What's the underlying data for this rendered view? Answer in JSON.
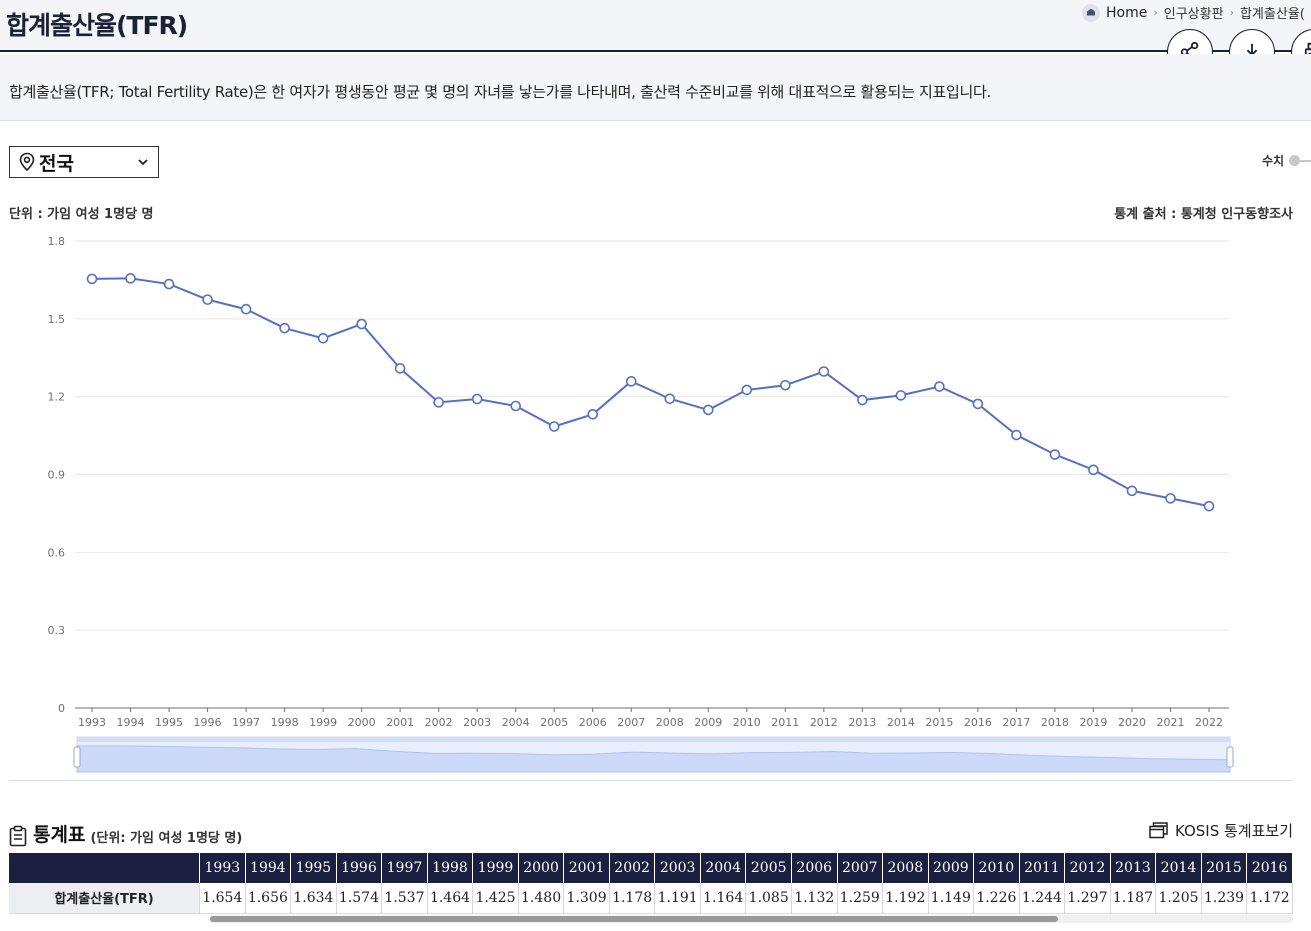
{
  "header": {
    "title": "합계출산율(TFR)",
    "breadcrumb": [
      "Home",
      "인구상황판",
      "합계출산율("
    ],
    "actions": [
      {
        "name": "share",
        "icon": "share-icon"
      },
      {
        "name": "download",
        "icon": "download-icon"
      },
      {
        "name": "print",
        "icon": "print-icon"
      }
    ]
  },
  "intro": {
    "text": "합계출산율(TFR; Total Fertility Rate)은 한 여자가 평생동안 평균 몇 명의 자녀를 낳는가를 나타내며, 출산력 수준비교를 위해 대표적으로 활용되는 지표입니다."
  },
  "controls": {
    "region": "전국",
    "value_toggle_label": "수치"
  },
  "chart_meta": {
    "unit": "단위 : 가임 여성 1명당 명",
    "source": "통계 출처 : 통계청 인구동향조사"
  },
  "chart_data": {
    "type": "line",
    "x": [
      1993,
      1994,
      1995,
      1996,
      1997,
      1998,
      1999,
      2000,
      2001,
      2002,
      2003,
      2004,
      2005,
      2006,
      2007,
      2008,
      2009,
      2010,
      2011,
      2012,
      2013,
      2014,
      2015,
      2016,
      2017,
      2018,
      2019,
      2020,
      2021,
      2022
    ],
    "series": [
      {
        "values": [
          1.654,
          1.656,
          1.634,
          1.574,
          1.537,
          1.464,
          1.425,
          1.48,
          1.309,
          1.178,
          1.191,
          1.164,
          1.085,
          1.132,
          1.259,
          1.192,
          1.149,
          1.226,
          1.244,
          1.297,
          1.187,
          1.205,
          1.239,
          1.172,
          1.052,
          0.977,
          0.918,
          0.837,
          0.808,
          0.778
        ]
      }
    ],
    "yticks": [
      "0",
      "0.3",
      "0.6",
      "0.9",
      "1.2",
      "1.5",
      "1.8"
    ],
    "ylim": [
      0,
      1.8
    ],
    "grid": true,
    "color": "#5470c6",
    "zoom_slider": true
  },
  "table": {
    "title": "통계표",
    "unit": "(단위: 가임 여성 1명당 명)",
    "kosis_label": "KOSIS 통계표보기",
    "row_label": "합계출산율(TFR)",
    "years": [
      "1993",
      "1994",
      "1995",
      "1996",
      "1997",
      "1998",
      "1999",
      "2000",
      "2001",
      "2002",
      "2003",
      "2004",
      "2005",
      "2006",
      "2007",
      "2008",
      "2009",
      "2010",
      "2011",
      "2012",
      "2013",
      "2014",
      "2015",
      "2016"
    ],
    "values": [
      "1.654",
      "1.656",
      "1.634",
      "1.574",
      "1.537",
      "1.464",
      "1.425",
      "1.480",
      "1.309",
      "1.178",
      "1.191",
      "1.164",
      "1.085",
      "1.132",
      "1.259",
      "1.192",
      "1.149",
      "1.226",
      "1.244",
      "1.297",
      "1.187",
      "1.205",
      "1.239",
      "1.172"
    ]
  }
}
